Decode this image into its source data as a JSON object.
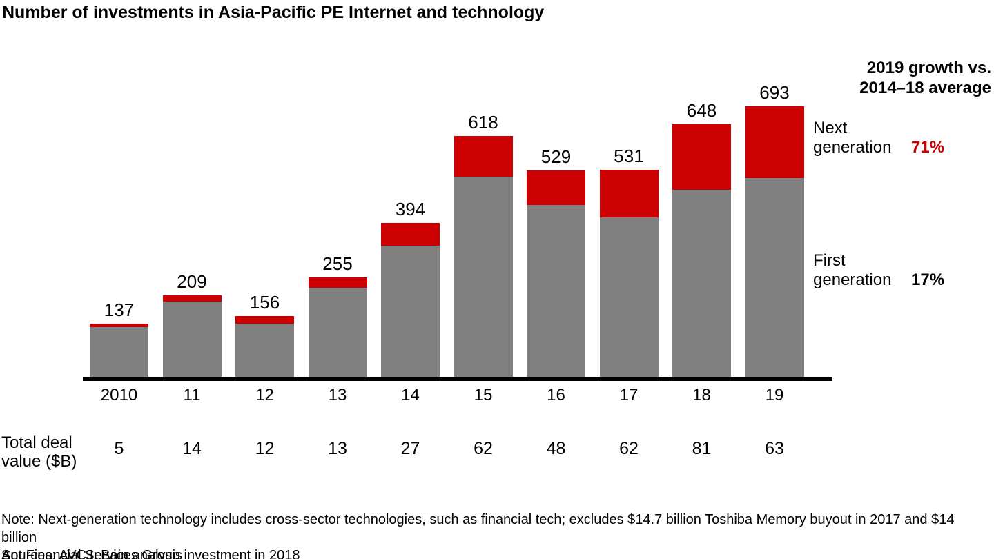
{
  "title": "Number of investments in Asia-Pacific PE Internet and technology",
  "chart_data": {
    "type": "bar",
    "stacked": true,
    "title": "Number of investments in Asia-Pacific PE Internet and technology",
    "categories": [
      "2010",
      "11",
      "12",
      "13",
      "14",
      "15",
      "16",
      "17",
      "18",
      "19"
    ],
    "series": [
      {
        "name": "First generation",
        "color": "#808080",
        "values": [
          127,
          193,
          137,
          229,
          336,
          514,
          440,
          408,
          480,
          509
        ]
      },
      {
        "name": "Next generation",
        "color": "#cc0000",
        "values": [
          10,
          16,
          19,
          26,
          58,
          104,
          89,
          123,
          168,
          184
        ]
      }
    ],
    "totals": [
      137,
      209,
      156,
      255,
      394,
      618,
      529,
      531,
      648,
      693
    ],
    "total_deal_value_label": "Total deal value ($B)",
    "total_deal_values": [
      5,
      14,
      12,
      13,
      27,
      62,
      48,
      62,
      81,
      63
    ],
    "ylim": [
      0,
      700
    ],
    "grid": false,
    "axis_color": "#000000",
    "legend_position": "right"
  },
  "annotations": {
    "header_line1": "2019 growth vs.",
    "header_line2": "2014–18 average",
    "next_generation": {
      "label": "Next generation",
      "growth": "71%",
      "color": "#cc0000"
    },
    "first_generation": {
      "label": "First generation",
      "growth": "17%",
      "color": "#000000"
    }
  },
  "footer": {
    "deal_value_row_label": "Total deal value ($B)",
    "note_line1": "Note: Next-generation technology includes cross-sector technologies, such as financial tech; excludes $14.7 billion Toshiba Memory buyout in 2017 and $14 billion",
    "note_line2": "Ant Financial Services Group investment in 2018",
    "sources": "Sources: AVCJ; Bain analysis"
  }
}
